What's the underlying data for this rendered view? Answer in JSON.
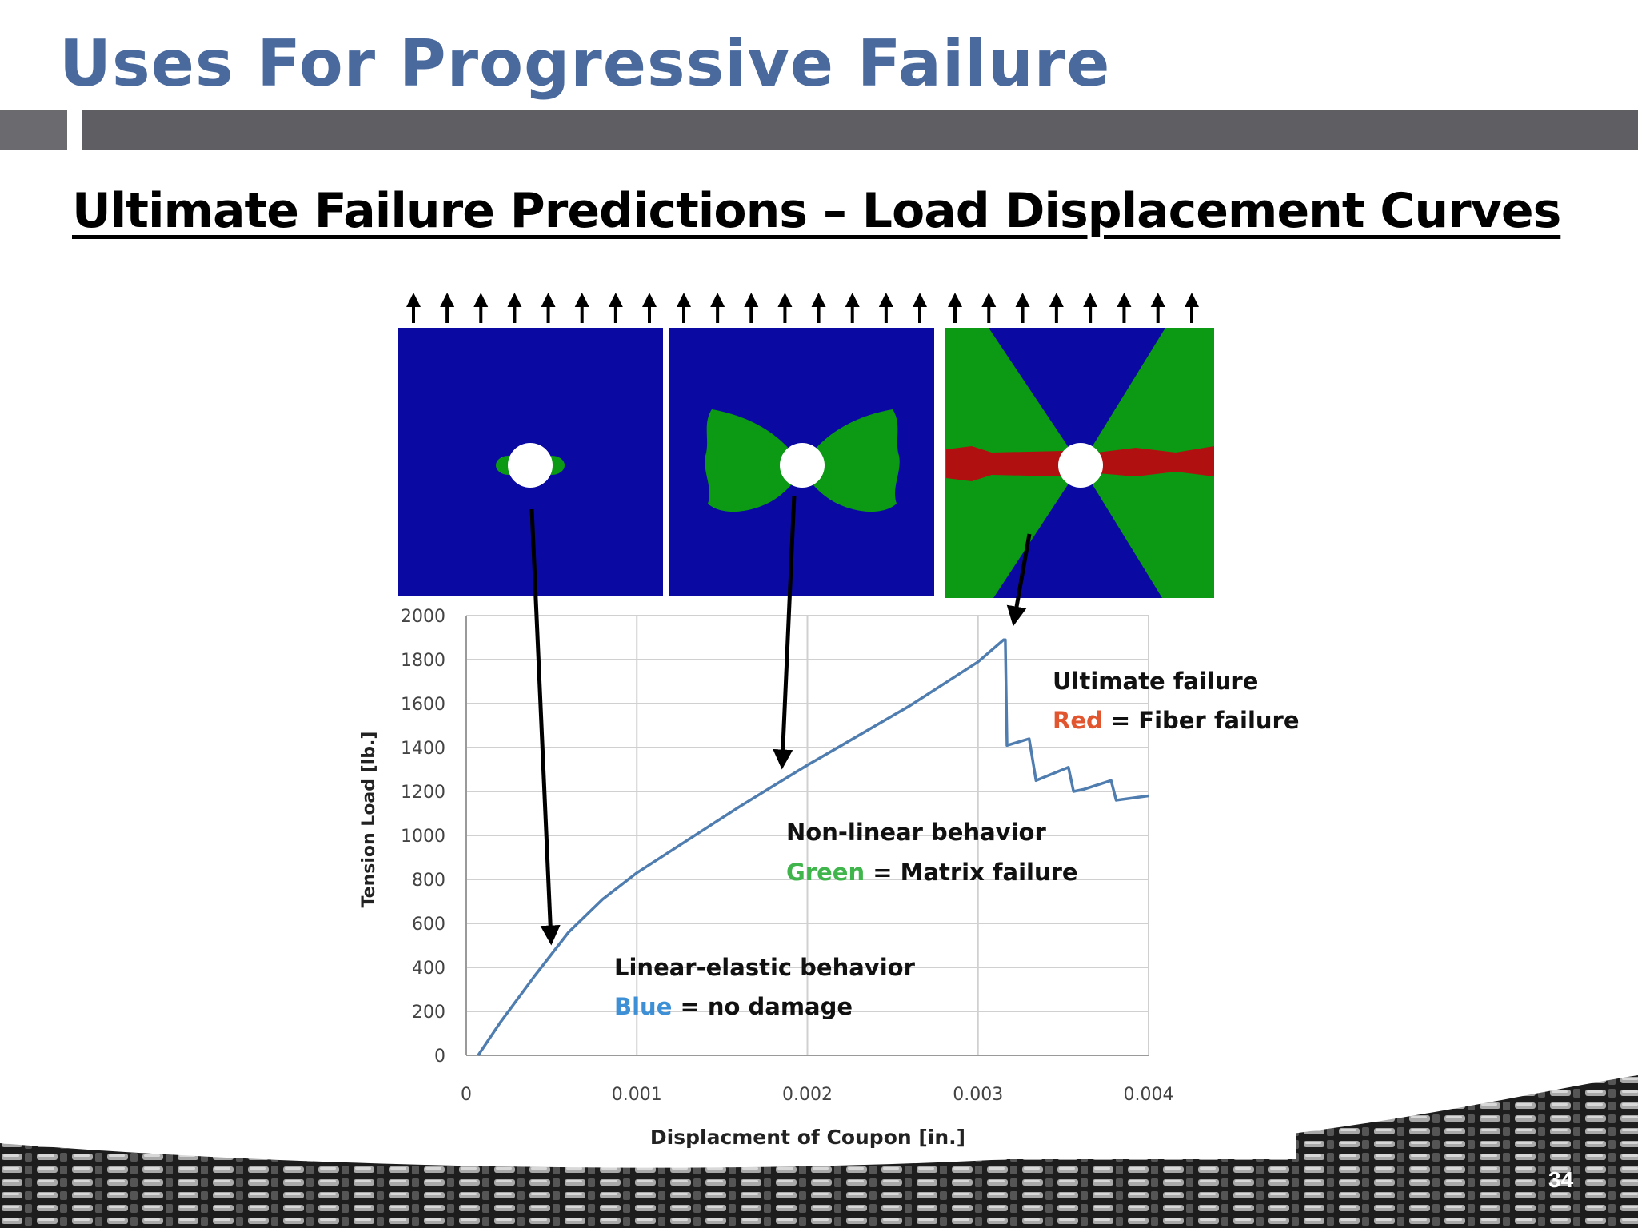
{
  "slide": {
    "title": "Uses For Progressive Failure",
    "subtitle": "Ultimate Failure Predictions – Load Displacement Curves",
    "page_number": "34"
  },
  "colors": {
    "title": "#4a6a9e",
    "curve": "#4f7db0",
    "no_damage": "#0a0aa2",
    "matrix_failure": "#0c9a14",
    "fiber_failure": "#b01010",
    "label_blue": "#3d8fd6",
    "label_green": "#3fb54b",
    "label_red": "#e2562f"
  },
  "damage_panels": [
    {
      "state": "no damage",
      "color": "blue",
      "icon": "damage-panel-linear"
    },
    {
      "state": "matrix failure",
      "color": "green",
      "icon": "damage-panel-nonlinear"
    },
    {
      "state": "fiber failure",
      "color": "red",
      "icon": "damage-panel-ultimate"
    }
  ],
  "annotations": [
    {
      "title": "Ultimate failure",
      "key_word": "Red",
      "key_rest": " = Fiber failure",
      "key_color": "#e2562f"
    },
    {
      "title": "Non-linear behavior",
      "key_word": "Green",
      "key_rest": " = Matrix  failure",
      "key_color": "#3fb54b"
    },
    {
      "title": "Linear-elastic behavior",
      "key_word": "Blue",
      "key_rest": " = no damage",
      "key_color": "#3d8fd6"
    }
  ],
  "chart_data": {
    "type": "line",
    "title": "",
    "xlabel": "Displacment of Coupon [in.]",
    "ylabel": "Tension Load [lb.]",
    "xlim": [
      0,
      0.004
    ],
    "ylim": [
      0,
      2000
    ],
    "x_ticks": [
      "0",
      "0.001",
      "0.002",
      "0.003",
      "0.004"
    ],
    "y_ticks": [
      "0",
      "200",
      "400",
      "600",
      "800",
      "1000",
      "1200",
      "1400",
      "1600",
      "1800",
      "2000"
    ],
    "grid": true,
    "legend": "none",
    "series": [
      {
        "x": [
          7e-05,
          0.0002,
          0.0004,
          0.0006,
          0.0008,
          0.001,
          0.0012,
          0.0014,
          0.0016,
          0.0018,
          0.002,
          0.0022,
          0.0024,
          0.0026,
          0.0028,
          0.003,
          0.00315,
          0.00316,
          0.00317,
          0.0033,
          0.00334,
          0.00353,
          0.00356,
          0.00362,
          0.00378,
          0.00381,
          0.004
        ],
        "y": [
          0,
          150,
          360,
          560,
          710,
          830,
          930,
          1030,
          1130,
          1225,
          1320,
          1410,
          1500,
          1590,
          1690,
          1790,
          1890,
          1890,
          1410,
          1440,
          1250,
          1310,
          1200,
          1210,
          1250,
          1160,
          1180
        ]
      }
    ]
  }
}
